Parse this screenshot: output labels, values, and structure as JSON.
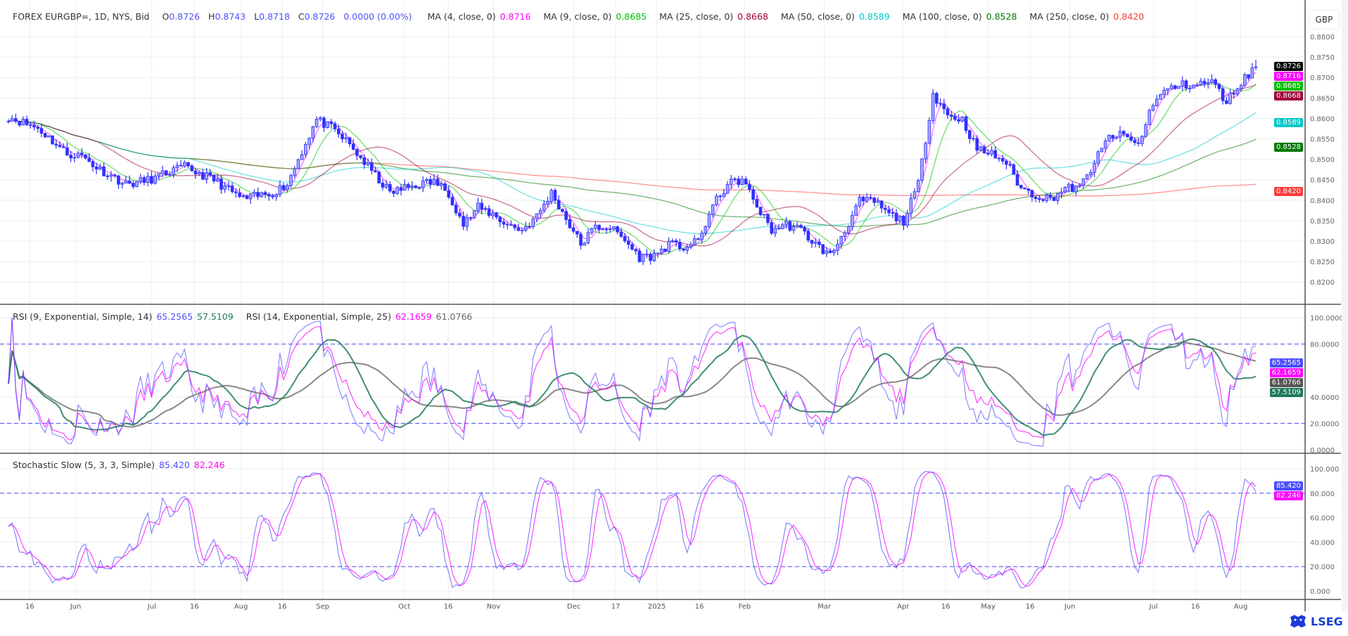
{
  "chart_data": {
    "type": "candlestick",
    "currency": "GBP",
    "header": {
      "symbol": "FOREX EURGBP=, 1D, NYS, Bid",
      "open_label": "O",
      "open": "0.8726",
      "high_label": "H",
      "high": "0.8743",
      "low_label": "L",
      "low": "0.8718",
      "close_label": "C",
      "close": "0.8726",
      "change": "0.0000 (0.00%)"
    },
    "last_price": {
      "value": "0.8726",
      "color": "#000000"
    },
    "moving_averages": [
      {
        "label": "MA (4, close, 0)",
        "period": 4,
        "value": "0.8716",
        "color": "#ff00ff"
      },
      {
        "label": "MA (9, close, 0)",
        "period": 9,
        "value": "0.8685",
        "color": "#00c000"
      },
      {
        "label": "MA (25, close, 0)",
        "period": 25,
        "value": "0.8668",
        "color": "#a0003a"
      },
      {
        "label": "MA (50, close, 0)",
        "period": 50,
        "value": "0.8589",
        "color": "#00c8c8"
      },
      {
        "label": "MA (100, close, 0)",
        "period": 100,
        "value": "0.8528",
        "color": "#007a00"
      },
      {
        "label": "MA (250, close, 0)",
        "period": 250,
        "value": "0.8420",
        "color": "#ff3b3b"
      }
    ],
    "price_axis": {
      "ylim": [
        0.82,
        0.88
      ],
      "ticks": [
        "0.8800",
        "0.8750",
        "0.8700",
        "0.8650",
        "0.8600",
        "0.8550",
        "0.8500",
        "0.8450",
        "0.8400",
        "0.8350",
        "0.8300",
        "0.8250",
        "0.8200"
      ]
    },
    "x_ticks": [
      "16",
      "Jun",
      "Jul",
      "16",
      "Aug",
      "16",
      "Sep",
      "Oct",
      "16",
      "Nov",
      "Dec",
      "17",
      "2025",
      "16",
      "Feb",
      "Mar",
      "Apr",
      "16",
      "May",
      "16",
      "Jun",
      "Jul",
      "16",
      "Aug"
    ],
    "close_series": [
      0.8604,
      0.859,
      0.8576,
      0.8545,
      0.8513,
      0.8509,
      0.848,
      0.846,
      0.8439,
      0.8445,
      0.8454,
      0.847,
      0.8481,
      0.8465,
      0.845,
      0.8425,
      0.8403,
      0.841,
      0.8418,
      0.8439,
      0.852,
      0.8597,
      0.8576,
      0.8545,
      0.8503,
      0.846,
      0.8418,
      0.843,
      0.8439,
      0.8446,
      0.8418,
      0.834,
      0.8382,
      0.8365,
      0.834,
      0.8327,
      0.836,
      0.8418,
      0.8355,
      0.8292,
      0.8334,
      0.8334,
      0.8302,
      0.826,
      0.8264,
      0.8292,
      0.8285,
      0.8298,
      0.8386,
      0.8439,
      0.845,
      0.8386,
      0.8327,
      0.834,
      0.8327,
      0.8292,
      0.8264,
      0.8327,
      0.8397,
      0.8397,
      0.8365,
      0.8349,
      0.8439,
      0.8661,
      0.8608,
      0.8597,
      0.8524,
      0.8513,
      0.8492,
      0.8429,
      0.8412,
      0.8403,
      0.8429,
      0.8429,
      0.8492,
      0.8555,
      0.8559,
      0.8534,
      0.864,
      0.8671,
      0.8682,
      0.8682,
      0.869,
      0.864,
      0.869,
      0.8726
    ],
    "rsi": {
      "legend1": "RSI (9, Exponential, Simple, 14)",
      "rsi1_value": "65.2565",
      "rsi1_color": "#5050ff",
      "sig1_value": "57.5109",
      "sig1_color": "#1f7a5a",
      "legend2": "RSI (14, Exponential, Simple, 25)",
      "rsi2_value": "62.1659",
      "rsi2_color": "#ff00ff",
      "sig2_value": "61.0766",
      "sig2_color": "#555555",
      "ylim": [
        0,
        100
      ],
      "levels": [
        80,
        20
      ],
      "ticks": [
        "100.0000",
        "80.0000",
        "40.0000",
        "20.0000",
        "0.0000"
      ]
    },
    "stochastic": {
      "legend": "Stochastic Slow (5, 3, 3, Simple)",
      "k_value": "85.420",
      "k_color": "#5050ff",
      "d_value": "82.246",
      "d_color": "#ff00ff",
      "ylim": [
        0,
        100
      ],
      "levels": [
        80,
        20
      ],
      "ticks": [
        "100.000",
        "80.000",
        "60.000",
        "40.000",
        "20.000",
        "0.000"
      ]
    },
    "grid": true
  },
  "branding": {
    "logo_text": "LSEG"
  }
}
